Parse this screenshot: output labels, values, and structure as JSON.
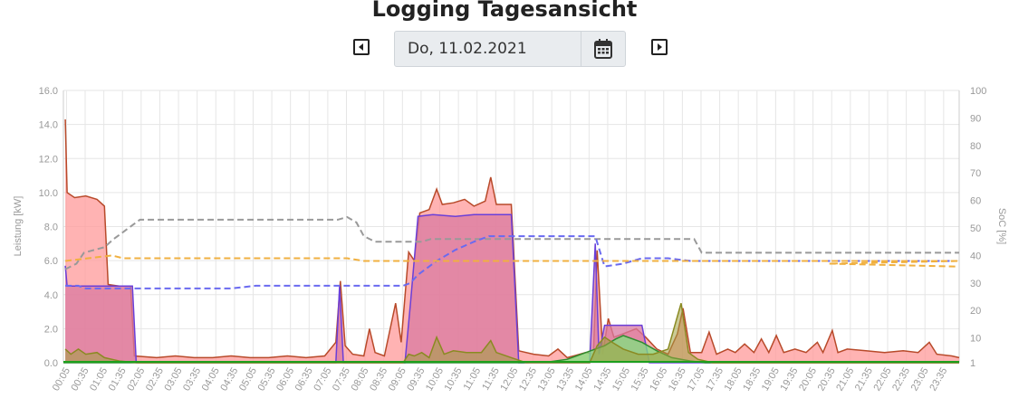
{
  "header": {
    "title": "Logging Tagesansicht",
    "date_value": "Do, 11.02.2021",
    "prev_icon": "caret-left-icon",
    "next_icon": "caret-right-icon",
    "calendar_icon": "calendar-icon"
  },
  "chart_data": {
    "type": "area",
    "title": "",
    "ylabel_left": "Leistung [kW]",
    "ylabel_right": "SoC [%]",
    "ylim_left": [
      0,
      16
    ],
    "ylim_right": [
      1,
      100
    ],
    "yticks_left": [
      "0.0",
      "2.0",
      "4.0",
      "6.0",
      "8.0",
      "10.0",
      "12.0",
      "14.0",
      "16.0"
    ],
    "yticks_right": [
      "1",
      "10",
      "20",
      "30",
      "40",
      "50",
      "60",
      "70",
      "80",
      "90",
      "100"
    ],
    "x_ticks": [
      "00:05",
      "00:35",
      "01:05",
      "01:35",
      "02:05",
      "02:35",
      "03:05",
      "03:35",
      "04:05",
      "04:35",
      "05:05",
      "05:35",
      "06:05",
      "06:35",
      "07:05",
      "07:35",
      "08:05",
      "08:35",
      "09:05",
      "09:35",
      "10:05",
      "10:35",
      "11:05",
      "11:35",
      "12:05",
      "12:35",
      "13:05",
      "13:35",
      "14:05",
      "14:35",
      "15:05",
      "15:35",
      "16:05",
      "16:35",
      "17:05",
      "17:35",
      "18:05",
      "18:35",
      "19:05",
      "19:35",
      "20:05",
      "20:35",
      "21:05",
      "21:35",
      "22:05",
      "22:35",
      "23:05",
      "23:35"
    ],
    "grid": true,
    "colors": {
      "house_fill": "#ff9a9a",
      "house_line": "#b84a2a",
      "ev_fill": "#d97aa0",
      "ev_line": "#6a3fd8",
      "pv_fill": "#7fe37f",
      "pv_line": "#2e8b2e",
      "battery_fill": "#a0a040",
      "battery_line": "#8a8a22",
      "soc1": "#999999",
      "soc2": "#6a6af0",
      "soc3": "#f0b040",
      "grid_line": "#e6e6e6",
      "axis_text": "#999999"
    },
    "series": [
      {
        "key": "house",
        "points": [
          [
            0.05,
            14.3
          ],
          [
            0.1,
            10.0
          ],
          [
            0.3,
            9.7
          ],
          [
            0.6,
            9.8
          ],
          [
            0.9,
            9.6
          ],
          [
            1.1,
            9.2
          ],
          [
            1.2,
            4.6
          ],
          [
            1.5,
            4.5
          ],
          [
            1.8,
            4.5
          ],
          [
            1.9,
            0.4
          ],
          [
            2.5,
            0.3
          ],
          [
            3.0,
            0.4
          ],
          [
            3.5,
            0.3
          ],
          [
            4.0,
            0.3
          ],
          [
            4.5,
            0.4
          ],
          [
            5.0,
            0.3
          ],
          [
            5.5,
            0.3
          ],
          [
            6.0,
            0.4
          ],
          [
            6.5,
            0.3
          ],
          [
            7.0,
            0.4
          ],
          [
            7.3,
            1.2
          ],
          [
            7.42,
            4.8
          ],
          [
            7.55,
            1.0
          ],
          [
            7.75,
            0.5
          ],
          [
            8.05,
            0.4
          ],
          [
            8.2,
            2.0
          ],
          [
            8.35,
            0.6
          ],
          [
            8.6,
            0.4
          ],
          [
            8.9,
            3.5
          ],
          [
            9.05,
            1.2
          ],
          [
            9.25,
            6.5
          ],
          [
            9.4,
            6.0
          ],
          [
            9.55,
            8.8
          ],
          [
            9.8,
            9.0
          ],
          [
            10.0,
            10.2
          ],
          [
            10.15,
            9.3
          ],
          [
            10.45,
            9.4
          ],
          [
            10.75,
            9.6
          ],
          [
            11.0,
            9.2
          ],
          [
            11.3,
            9.5
          ],
          [
            11.45,
            10.9
          ],
          [
            11.6,
            9.3
          ],
          [
            12.0,
            9.3
          ],
          [
            12.2,
            0.7
          ],
          [
            12.6,
            0.5
          ],
          [
            13.0,
            0.4
          ],
          [
            13.25,
            0.8
          ],
          [
            13.5,
            0.3
          ],
          [
            14.0,
            0.6
          ],
          [
            14.2,
            0.5
          ],
          [
            14.3,
            6.6
          ],
          [
            14.45,
            0.5
          ],
          [
            14.6,
            2.6
          ],
          [
            14.75,
            1.5
          ],
          [
            15.0,
            1.7
          ],
          [
            15.35,
            2.0
          ],
          [
            15.6,
            1.5
          ],
          [
            15.9,
            0.8
          ],
          [
            16.2,
            0.5
          ],
          [
            16.45,
            1.7
          ],
          [
            16.6,
            3.2
          ],
          [
            16.8,
            0.6
          ],
          [
            17.1,
            0.6
          ],
          [
            17.3,
            1.8
          ],
          [
            17.5,
            0.5
          ],
          [
            17.8,
            0.8
          ],
          [
            18.0,
            0.6
          ],
          [
            18.25,
            1.1
          ],
          [
            18.5,
            0.6
          ],
          [
            18.7,
            1.4
          ],
          [
            18.9,
            0.6
          ],
          [
            19.1,
            1.6
          ],
          [
            19.3,
            0.6
          ],
          [
            19.6,
            0.8
          ],
          [
            19.9,
            0.6
          ],
          [
            20.2,
            1.2
          ],
          [
            20.35,
            0.6
          ],
          [
            20.6,
            1.9
          ],
          [
            20.75,
            0.6
          ],
          [
            21.0,
            0.8
          ],
          [
            21.5,
            0.7
          ],
          [
            22.0,
            0.6
          ],
          [
            22.5,
            0.7
          ],
          [
            22.9,
            0.6
          ],
          [
            23.2,
            1.2
          ],
          [
            23.4,
            0.5
          ],
          [
            23.8,
            0.4
          ],
          [
            24.0,
            0.3
          ]
        ]
      },
      {
        "key": "ev",
        "points": [
          [
            0.05,
            5.7
          ],
          [
            0.1,
            4.5
          ],
          [
            1.85,
            4.5
          ],
          [
            1.95,
            0.0
          ],
          [
            7.3,
            0.0
          ],
          [
            7.4,
            4.5
          ],
          [
            7.5,
            0.0
          ],
          [
            9.15,
            0.0
          ],
          [
            9.3,
            3.5
          ],
          [
            9.5,
            8.6
          ],
          [
            9.9,
            8.7
          ],
          [
            10.5,
            8.6
          ],
          [
            11.0,
            8.7
          ],
          [
            12.0,
            8.7
          ],
          [
            12.2,
            0.0
          ],
          [
            14.1,
            0.0
          ],
          [
            14.25,
            7.0
          ],
          [
            14.35,
            0.5
          ],
          [
            14.5,
            2.2
          ],
          [
            15.5,
            2.2
          ],
          [
            15.7,
            0.0
          ],
          [
            24.0,
            0.0
          ]
        ]
      },
      {
        "key": "pv",
        "points": [
          [
            0.0,
            0.0
          ],
          [
            12.3,
            0.0
          ],
          [
            13.0,
            0.05
          ],
          [
            13.5,
            0.2
          ],
          [
            14.0,
            0.6
          ],
          [
            14.5,
            1.0
          ],
          [
            14.8,
            1.4
          ],
          [
            15.0,
            1.6
          ],
          [
            15.5,
            1.2
          ],
          [
            15.9,
            0.7
          ],
          [
            16.3,
            0.3
          ],
          [
            16.8,
            0.1
          ],
          [
            17.2,
            0.0
          ],
          [
            24.0,
            0.0
          ]
        ]
      },
      {
        "key": "battery",
        "points": [
          [
            0.05,
            0.8
          ],
          [
            0.2,
            0.5
          ],
          [
            0.4,
            0.8
          ],
          [
            0.6,
            0.5
          ],
          [
            0.9,
            0.6
          ],
          [
            1.1,
            0.3
          ],
          [
            1.5,
            0.1
          ],
          [
            2.0,
            0.0
          ],
          [
            9.1,
            0.0
          ],
          [
            9.25,
            0.5
          ],
          [
            9.4,
            0.4
          ],
          [
            9.6,
            0.6
          ],
          [
            9.8,
            0.3
          ],
          [
            10.0,
            1.5
          ],
          [
            10.2,
            0.5
          ],
          [
            10.45,
            0.7
          ],
          [
            10.8,
            0.6
          ],
          [
            11.2,
            0.6
          ],
          [
            11.45,
            1.3
          ],
          [
            11.6,
            0.6
          ],
          [
            12.0,
            0.3
          ],
          [
            12.4,
            0.0
          ],
          [
            14.1,
            0.0
          ],
          [
            14.3,
            1.0
          ],
          [
            14.5,
            1.5
          ],
          [
            14.7,
            1.2
          ],
          [
            15.0,
            0.8
          ],
          [
            15.4,
            0.5
          ],
          [
            15.8,
            0.5
          ],
          [
            16.2,
            0.8
          ],
          [
            16.55,
            3.5
          ],
          [
            16.75,
            0.6
          ],
          [
            17.0,
            0.2
          ],
          [
            17.4,
            0.0
          ],
          [
            24.0,
            0.0
          ]
        ]
      },
      {
        "key": "soc_gray",
        "points": [
          [
            0.05,
            35
          ],
          [
            0.35,
            37
          ],
          [
            0.55,
            41
          ],
          [
            1.1,
            43
          ],
          [
            1.35,
            46
          ],
          [
            1.75,
            50
          ],
          [
            2.05,
            53
          ],
          [
            7.35,
            53
          ],
          [
            7.6,
            54
          ],
          [
            7.85,
            52
          ],
          [
            8.05,
            47
          ],
          [
            8.35,
            45
          ],
          [
            9.6,
            45
          ],
          [
            9.85,
            46
          ],
          [
            16.9,
            46
          ],
          [
            17.1,
            41
          ],
          [
            24.0,
            41
          ]
        ]
      },
      {
        "key": "soc_blue",
        "points": [
          [
            0.05,
            29
          ],
          [
            0.4,
            29
          ],
          [
            0.6,
            28
          ],
          [
            4.5,
            28
          ],
          [
            5.15,
            29
          ],
          [
            9.1,
            29
          ],
          [
            9.3,
            30
          ],
          [
            9.5,
            33
          ],
          [
            10.0,
            38
          ],
          [
            10.5,
            42
          ],
          [
            11.0,
            45
          ],
          [
            11.4,
            47
          ],
          [
            12.0,
            47
          ],
          [
            14.25,
            47
          ],
          [
            14.5,
            36
          ],
          [
            15.0,
            37
          ],
          [
            15.5,
            39
          ],
          [
            16.2,
            39
          ],
          [
            16.8,
            38
          ],
          [
            23.9,
            38
          ]
        ]
      },
      {
        "key": "soc_orange",
        "points": [
          [
            0.05,
            38
          ],
          [
            1.3,
            40
          ],
          [
            1.6,
            39
          ],
          [
            7.6,
            39
          ],
          [
            8.05,
            38
          ],
          [
            24.0,
            38
          ],
          [
            20.5,
            37
          ],
          [
            23.9,
            36
          ]
        ]
      }
    ]
  }
}
